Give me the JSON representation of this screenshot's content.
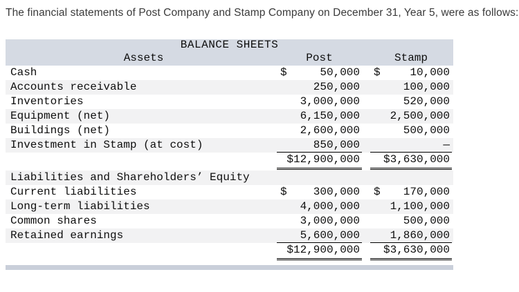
{
  "intro": "The financial statements of Post Company and Stamp Company on December 31, Year 5, were as follows:",
  "balance_sheet": {
    "title": "BALANCE SHEETS",
    "assets_header": "Assets",
    "columns": {
      "post": "Post",
      "stamp": "Stamp"
    },
    "asset_rows": [
      {
        "label": "Cash",
        "post_symbol": "$",
        "post": "50,000",
        "stamp_symbol": "$",
        "stamp": "10,000"
      },
      {
        "label": "Accounts receivable",
        "post": "250,000",
        "stamp": "100,000"
      },
      {
        "label": "Inventories",
        "post": "3,000,000",
        "stamp": "520,000"
      },
      {
        "label": "Equipment (net)",
        "post": "6,150,000",
        "stamp": "2,500,000"
      },
      {
        "label": "Buildings (net)",
        "post": "2,600,000",
        "stamp": "500,000"
      },
      {
        "label": "Investment in Stamp (at cost)",
        "post": "850,000",
        "stamp": "—"
      }
    ],
    "assets_total": {
      "post": "$12,900,000",
      "stamp": "$3,630,000"
    },
    "liabilities_header": "Liabilities and Shareholders’ Equity",
    "liability_rows": [
      {
        "label": "Current liabilities",
        "post_symbol": "$",
        "post": "300,000",
        "stamp_symbol": "$",
        "stamp": "170,000"
      },
      {
        "label": "Long-term liabilities",
        "post": "4,000,000",
        "stamp": "1,100,000"
      },
      {
        "label": "Common shares",
        "post": "3,000,000",
        "stamp": "500,000"
      },
      {
        "label": "Retained earnings",
        "post": "5,600,000",
        "stamp": "1,860,000"
      }
    ],
    "liabilities_total": {
      "post": "$12,900,000",
      "stamp": "$3,630,000"
    }
  }
}
